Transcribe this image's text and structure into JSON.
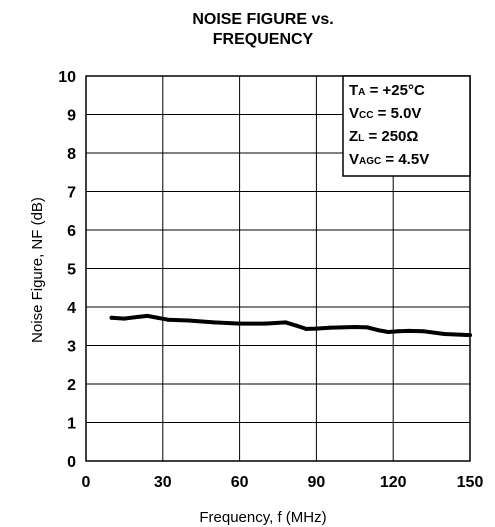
{
  "chart_data": {
    "type": "line",
    "title_lines": [
      "NOISE FIGURE vs.",
      "FREQUENCY"
    ],
    "xlabel": "Frequency, f (MHz)",
    "ylabel": "Noise Figure, NF (dB)",
    "xlim": [
      0,
      150
    ],
    "ylim": [
      0,
      10
    ],
    "x_ticks": [
      0,
      30,
      60,
      90,
      120,
      150
    ],
    "y_ticks": [
      0,
      1,
      2,
      3,
      4,
      5,
      6,
      7,
      8,
      9,
      10
    ],
    "grid": true,
    "annotation_position": "top-right",
    "annotations": [
      {
        "main": "T",
        "sub": "A",
        "rest": " = +25°C"
      },
      {
        "main": "V",
        "sub": "CC",
        "rest": " = 5.0V"
      },
      {
        "main": "Z",
        "sub": "L",
        "rest": " = 250Ω"
      },
      {
        "main": "V",
        "sub": "AGC",
        "rest": " = 4.5V"
      }
    ],
    "series": [
      {
        "x": [
          10,
          15,
          20,
          24,
          28,
          32,
          40,
          50,
          60,
          70,
          78,
          82,
          86,
          90,
          95,
          100,
          105,
          110,
          114,
          118,
          122,
          126,
          132,
          140,
          150
        ],
        "y": [
          3.72,
          3.7,
          3.74,
          3.77,
          3.72,
          3.67,
          3.65,
          3.6,
          3.57,
          3.57,
          3.6,
          3.52,
          3.43,
          3.44,
          3.46,
          3.47,
          3.48,
          3.47,
          3.4,
          3.35,
          3.37,
          3.38,
          3.37,
          3.3,
          3.27
        ],
        "color": "#000000"
      }
    ]
  }
}
